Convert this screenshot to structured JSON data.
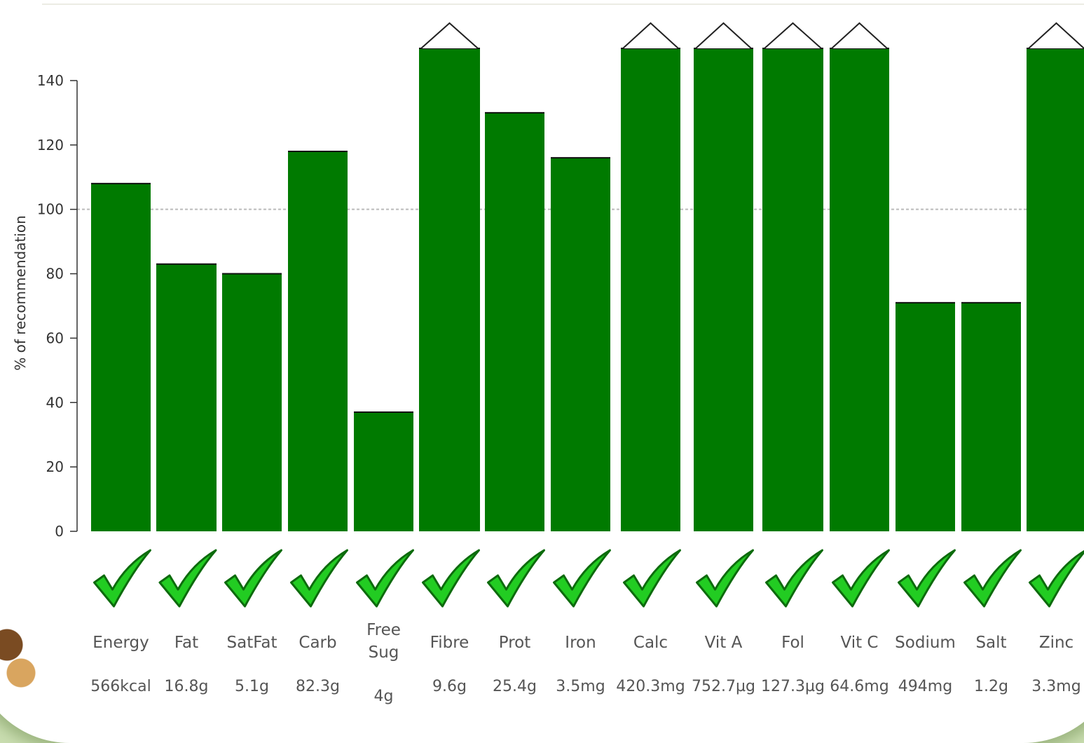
{
  "chart_data": {
    "type": "bar",
    "ylabel": "% of recommendation",
    "ylim": [
      0,
      150
    ],
    "yticks": [
      0,
      20,
      40,
      60,
      80,
      100,
      120,
      140
    ],
    "reference_line": 100,
    "categories": [
      "Energy",
      "Fat",
      "SatFat",
      "Carb",
      "Free Sug",
      "Fibre",
      "Prot",
      "Iron",
      "Calc",
      "Vit A",
      "Fol",
      "Vit C",
      "Sodium",
      "Salt",
      "Zinc"
    ],
    "values": [
      108,
      83,
      80,
      118,
      37,
      150,
      130,
      116,
      150,
      150,
      150,
      150,
      71,
      71,
      150
    ],
    "exceeds_max": [
      false,
      false,
      false,
      false,
      false,
      true,
      false,
      false,
      true,
      true,
      true,
      true,
      false,
      false,
      true
    ],
    "status": [
      "check",
      "check",
      "check",
      "check",
      "check",
      "check",
      "check",
      "check",
      "check",
      "check",
      "check",
      "check",
      "check",
      "check",
      "check"
    ],
    "amounts": [
      "566kcal",
      "16.8g",
      "5.1g",
      "82.3g",
      "4g",
      "9.6g",
      "25.4g",
      "3.5mg",
      "420.3mg",
      "752.7µg",
      "127.3µg",
      "64.6mg",
      "494mg",
      "1.2g",
      "3.3mg"
    ],
    "colors": {
      "bar": "#007a00",
      "check": "#22cc22",
      "check_outline": "#0d6b0d",
      "reference_line": "#bbbbbb"
    }
  }
}
